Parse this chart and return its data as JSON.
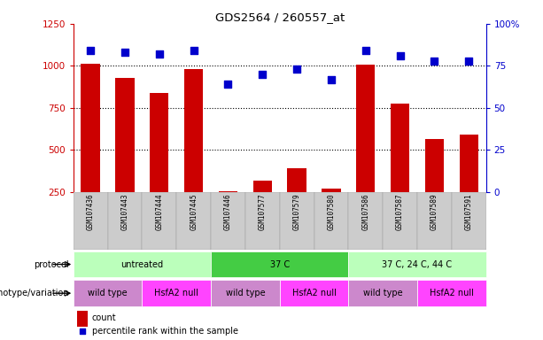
{
  "title": "GDS2564 / 260557_at",
  "samples": [
    "GSM107436",
    "GSM107443",
    "GSM107444",
    "GSM107445",
    "GSM107446",
    "GSM107577",
    "GSM107579",
    "GSM107580",
    "GSM107586",
    "GSM107587",
    "GSM107589",
    "GSM107591"
  ],
  "counts": [
    1010,
    930,
    840,
    980,
    255,
    320,
    390,
    270,
    1005,
    775,
    565,
    590
  ],
  "percentiles": [
    84,
    83,
    82,
    84,
    64,
    70,
    73,
    67,
    84,
    81,
    78,
    78
  ],
  "ylim_left": [
    250,
    1250
  ],
  "ylim_right": [
    0,
    100
  ],
  "yticks_left": [
    250,
    500,
    750,
    1000,
    1250
  ],
  "yticks_right": [
    0,
    25,
    50,
    75,
    100
  ],
  "bar_color": "#cc0000",
  "dot_color": "#0000cc",
  "bg_color": "#ffffff",
  "grid_color": "#000000",
  "grid_lines": [
    500,
    750,
    1000
  ],
  "sample_label_bg": "#cccccc",
  "protocol_groups": [
    {
      "label": "untreated",
      "start": 0,
      "end": 4,
      "color": "#bbffbb"
    },
    {
      "label": "37 C",
      "start": 4,
      "end": 8,
      "color": "#44cc44"
    },
    {
      "label": "37 C, 24 C, 44 C",
      "start": 8,
      "end": 12,
      "color": "#bbffbb"
    }
  ],
  "genotype_groups": [
    {
      "label": "wild type",
      "start": 0,
      "end": 2,
      "color": "#cc88cc"
    },
    {
      "label": "HsfA2 null",
      "start": 2,
      "end": 4,
      "color": "#ff44ff"
    },
    {
      "label": "wild type",
      "start": 4,
      "end": 6,
      "color": "#cc88cc"
    },
    {
      "label": "HsfA2 null",
      "start": 6,
      "end": 8,
      "color": "#ff44ff"
    },
    {
      "label": "wild type",
      "start": 8,
      "end": 10,
      "color": "#cc88cc"
    },
    {
      "label": "HsfA2 null",
      "start": 10,
      "end": 12,
      "color": "#ff44ff"
    }
  ],
  "legend_count_color": "#cc0000",
  "legend_dot_color": "#0000cc",
  "protocol_label": "protocol",
  "genotype_label": "genotype/variation",
  "legend_count_text": "count",
  "legend_percentile_text": "percentile rank within the sample",
  "bar_bottom": 250
}
